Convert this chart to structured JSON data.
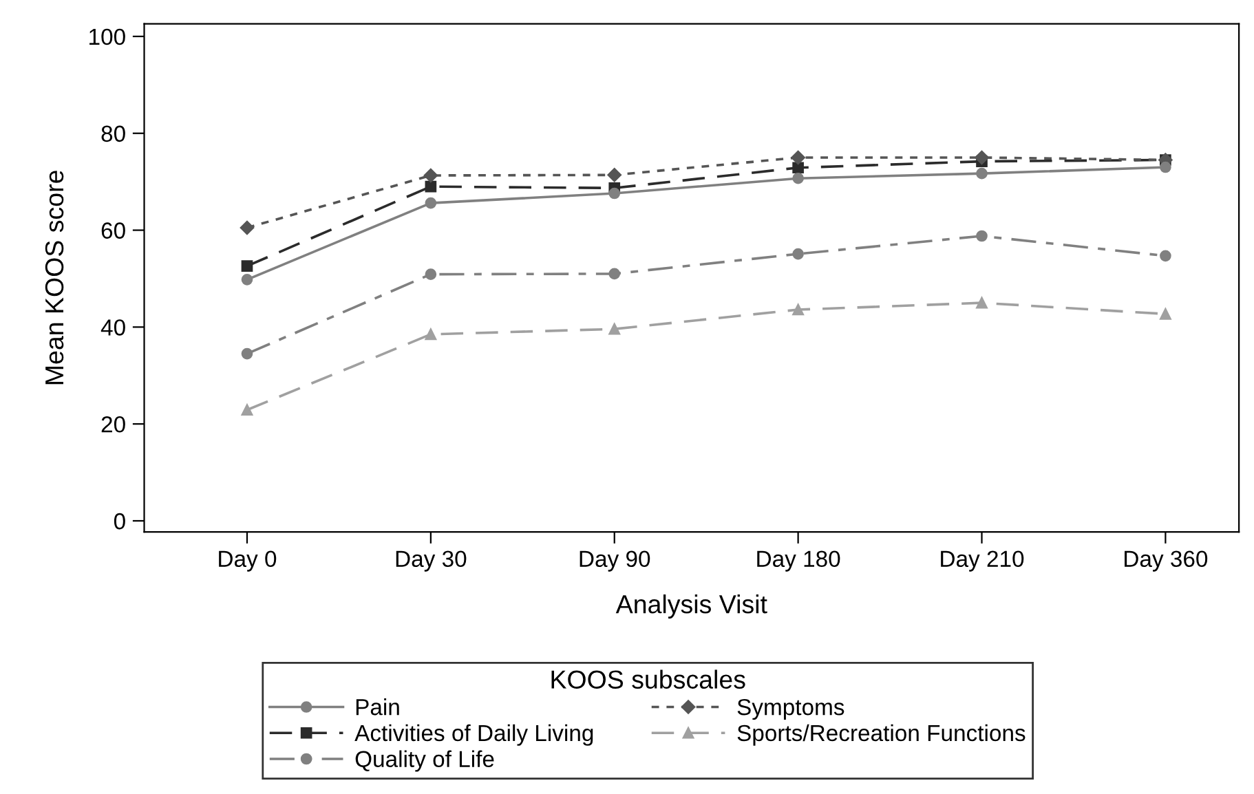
{
  "chart_data": {
    "type": "line",
    "xlabel": "Analysis Visit",
    "ylabel": "Mean KOOS score",
    "legend_title": "KOOS subscales",
    "legend": "bottom",
    "categories": [
      "Day 0",
      "Day 30",
      "Day 90",
      "Day 180",
      "Day 210",
      "Day 360"
    ],
    "ylim": [
      -2.3,
      102.6
    ],
    "yticks": [
      0,
      20,
      40,
      60,
      80,
      100
    ],
    "grid": false,
    "series": [
      {
        "name": "Pain",
        "color": "#808080",
        "marker": "circle",
        "line_style": "solid",
        "values": [
          49.8,
          65.6,
          67.6,
          70.7,
          71.7,
          73.0
        ]
      },
      {
        "name": "Symptoms",
        "color": "#555555",
        "marker": "diamond",
        "line_style": "dotted",
        "values": [
          60.5,
          71.3,
          71.4,
          75.0,
          75.0,
          74.5
        ]
      },
      {
        "name": "Activities of Daily Living",
        "color": "#2b2b2b",
        "marker": "square",
        "line_style": "dashed",
        "values": [
          52.6,
          69.0,
          68.7,
          72.9,
          74.2,
          74.5
        ]
      },
      {
        "name": "Sports/Recreation Functions",
        "color": "#a0a0a0",
        "marker": "triangle",
        "line_style": "dashed",
        "values": [
          22.9,
          38.5,
          39.6,
          43.6,
          45.0,
          42.7
        ]
      },
      {
        "name": "Quality of Life",
        "color": "#808080",
        "marker": "circle",
        "line_style": "dashdot",
        "values": [
          34.5,
          50.9,
          51.0,
          55.1,
          58.8,
          54.7
        ]
      }
    ]
  }
}
